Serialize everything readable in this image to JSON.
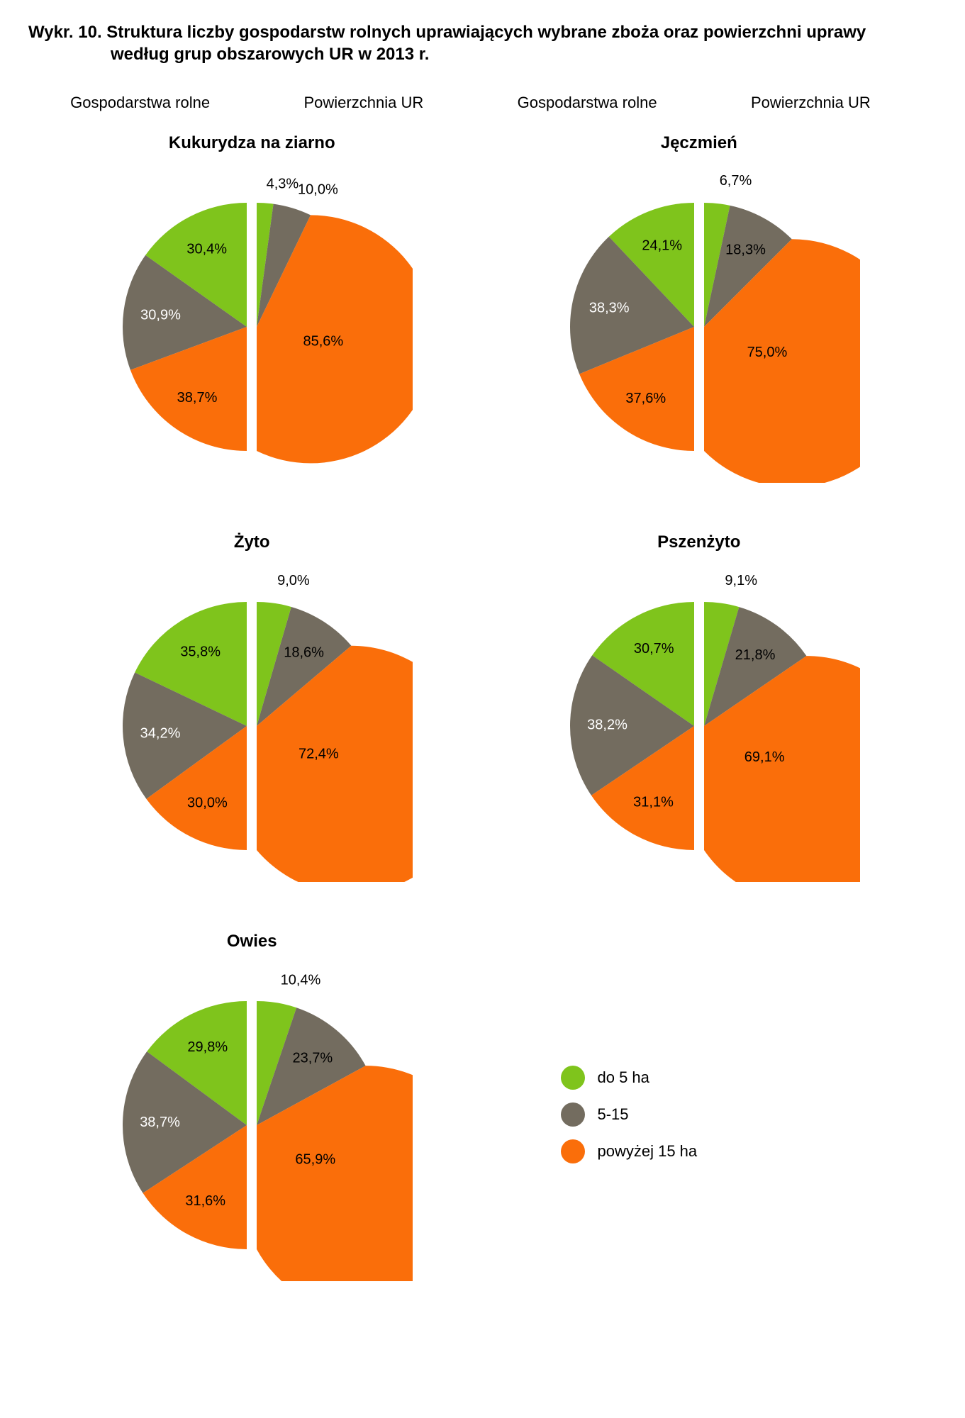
{
  "title_line1": "Wykr. 10.  Struktura liczby gospodarstw rolnych uprawiających wybrane zboża oraz powierzchni uprawy",
  "title_line2": "według grup obszarowych UR w 2013 r.",
  "headers": {
    "left1": "Gospodarstwa rolne",
    "left2": "Powierzchnia UR",
    "right1": "Gospodarstwa rolne",
    "right2": "Powierzchnia UR"
  },
  "colors": {
    "green": "#7fc41c",
    "grey": "#736c5f",
    "orange": "#fa6e0a",
    "label_white": "#ffffff",
    "label_black": "#000000",
    "background": "#ffffff"
  },
  "legend": [
    {
      "label": "do 5 ha",
      "color": "#7fc41c"
    },
    {
      "label": "5-15",
      "color": "#736c5f"
    },
    {
      "label": "powyżej 15 ha",
      "color": "#fa6e0a"
    }
  ],
  "pie_radius": 175,
  "label_fontsize": 20,
  "title_fontsize": 24,
  "header_fontsize": 22,
  "charts": [
    {
      "title": "Kukurydza na ziarno",
      "left": {
        "slices": [
          {
            "value": 30.4,
            "color": "#7fc41c",
            "label": "30,4%",
            "label_color": "#000000",
            "label_r": 0.7
          },
          {
            "value": 30.9,
            "color": "#736c5f",
            "label": "30,9%",
            "label_color": "#ffffff",
            "label_r": 0.7
          },
          {
            "value": 38.7,
            "color": "#fa6e0a",
            "label": "38,7%",
            "label_color": "#000000",
            "label_r": 0.7
          }
        ]
      },
      "right": {
        "slices": [
          {
            "value": 4.3,
            "color": "#7fc41c",
            "label": "4,3%",
            "label_color": "#000000",
            "label_r": 1.15
          },
          {
            "value": 10.0,
            "color": "#736c5f",
            "label": "10,0%",
            "label_color": "#000000",
            "label_r": 1.15
          },
          {
            "value": 85.6,
            "color": "#fa6e0a",
            "label": "85,6%",
            "label_color": "#000000",
            "label_r": 0.55
          }
        ]
      }
    },
    {
      "title": "Jęczmień",
      "left": {
        "slices": [
          {
            "value": 24.1,
            "color": "#7fc41c",
            "label": "24,1%",
            "label_color": "#000000",
            "label_r": 0.7
          },
          {
            "value": 38.3,
            "color": "#736c5f",
            "label": "38,3%",
            "label_color": "#ffffff",
            "label_r": 0.7
          },
          {
            "value": 37.6,
            "color": "#fa6e0a",
            "label": "37,6%",
            "label_color": "#000000",
            "label_r": 0.7
          }
        ]
      },
      "right": {
        "slices": [
          {
            "value": 6.7,
            "color": "#7fc41c",
            "label": "6,7%",
            "label_color": "#000000",
            "label_r": 1.18
          },
          {
            "value": 18.3,
            "color": "#736c5f",
            "label": "18,3%",
            "label_color": "#000000",
            "label_r": 0.7
          },
          {
            "value": 75.0,
            "color": "#fa6e0a",
            "label": "75,0%",
            "label_color": "#000000",
            "label_r": 0.55
          }
        ]
      }
    },
    {
      "title": "Żyto",
      "left": {
        "slices": [
          {
            "value": 35.8,
            "color": "#7fc41c",
            "label": "35,8%",
            "label_color": "#000000",
            "label_r": 0.7
          },
          {
            "value": 34.2,
            "color": "#736c5f",
            "label": "34,2%",
            "label_color": "#ffffff",
            "label_r": 0.7
          },
          {
            "value": 30.0,
            "color": "#fa6e0a",
            "label": "30,0%",
            "label_color": "#000000",
            "label_r": 0.7
          }
        ]
      },
      "right": {
        "slices": [
          {
            "value": 9.0,
            "color": "#7fc41c",
            "label": "9,0%",
            "label_color": "#000000",
            "label_r": 1.18
          },
          {
            "value": 18.6,
            "color": "#736c5f",
            "label": "18,6%",
            "label_color": "#000000",
            "label_r": 0.7
          },
          {
            "value": 72.4,
            "color": "#fa6e0a",
            "label": "72,4%",
            "label_color": "#000000",
            "label_r": 0.55
          }
        ]
      }
    },
    {
      "title": "Pszenżyto",
      "left": {
        "slices": [
          {
            "value": 30.7,
            "color": "#7fc41c",
            "label": "30,7%",
            "label_color": "#000000",
            "label_r": 0.7
          },
          {
            "value": 38.2,
            "color": "#736c5f",
            "label": "38,2%",
            "label_color": "#ffffff",
            "label_r": 0.7
          },
          {
            "value": 31.1,
            "color": "#fa6e0a",
            "label": "31,1%",
            "label_color": "#000000",
            "label_r": 0.7
          }
        ]
      },
      "right": {
        "slices": [
          {
            "value": 9.1,
            "color": "#7fc41c",
            "label": "9,1%",
            "label_color": "#000000",
            "label_r": 1.18
          },
          {
            "value": 21.8,
            "color": "#736c5f",
            "label": "21,8%",
            "label_color": "#000000",
            "label_r": 0.7
          },
          {
            "value": 69.1,
            "color": "#fa6e0a",
            "label": "69,1%",
            "label_color": "#000000",
            "label_r": 0.55
          }
        ]
      }
    },
    {
      "title": "Owies",
      "left": {
        "slices": [
          {
            "value": 29.8,
            "color": "#7fc41c",
            "label": "29,8%",
            "label_color": "#000000",
            "label_r": 0.7
          },
          {
            "value": 38.7,
            "color": "#736c5f",
            "label": "38,7%",
            "label_color": "#ffffff",
            "label_r": 0.7
          },
          {
            "value": 31.6,
            "color": "#fa6e0a",
            "label": "31,6%",
            "label_color": "#000000",
            "label_r": 0.7
          }
        ]
      },
      "right": {
        "slices": [
          {
            "value": 10.4,
            "color": "#7fc41c",
            "label": "10,4%",
            "label_color": "#000000",
            "label_r": 1.18
          },
          {
            "value": 23.7,
            "color": "#736c5f",
            "label": "23,7%",
            "label_color": "#000000",
            "label_r": 0.7
          },
          {
            "value": 65.9,
            "color": "#fa6e0a",
            "label": "65,9%",
            "label_color": "#000000",
            "label_r": 0.55
          }
        ]
      }
    }
  ]
}
